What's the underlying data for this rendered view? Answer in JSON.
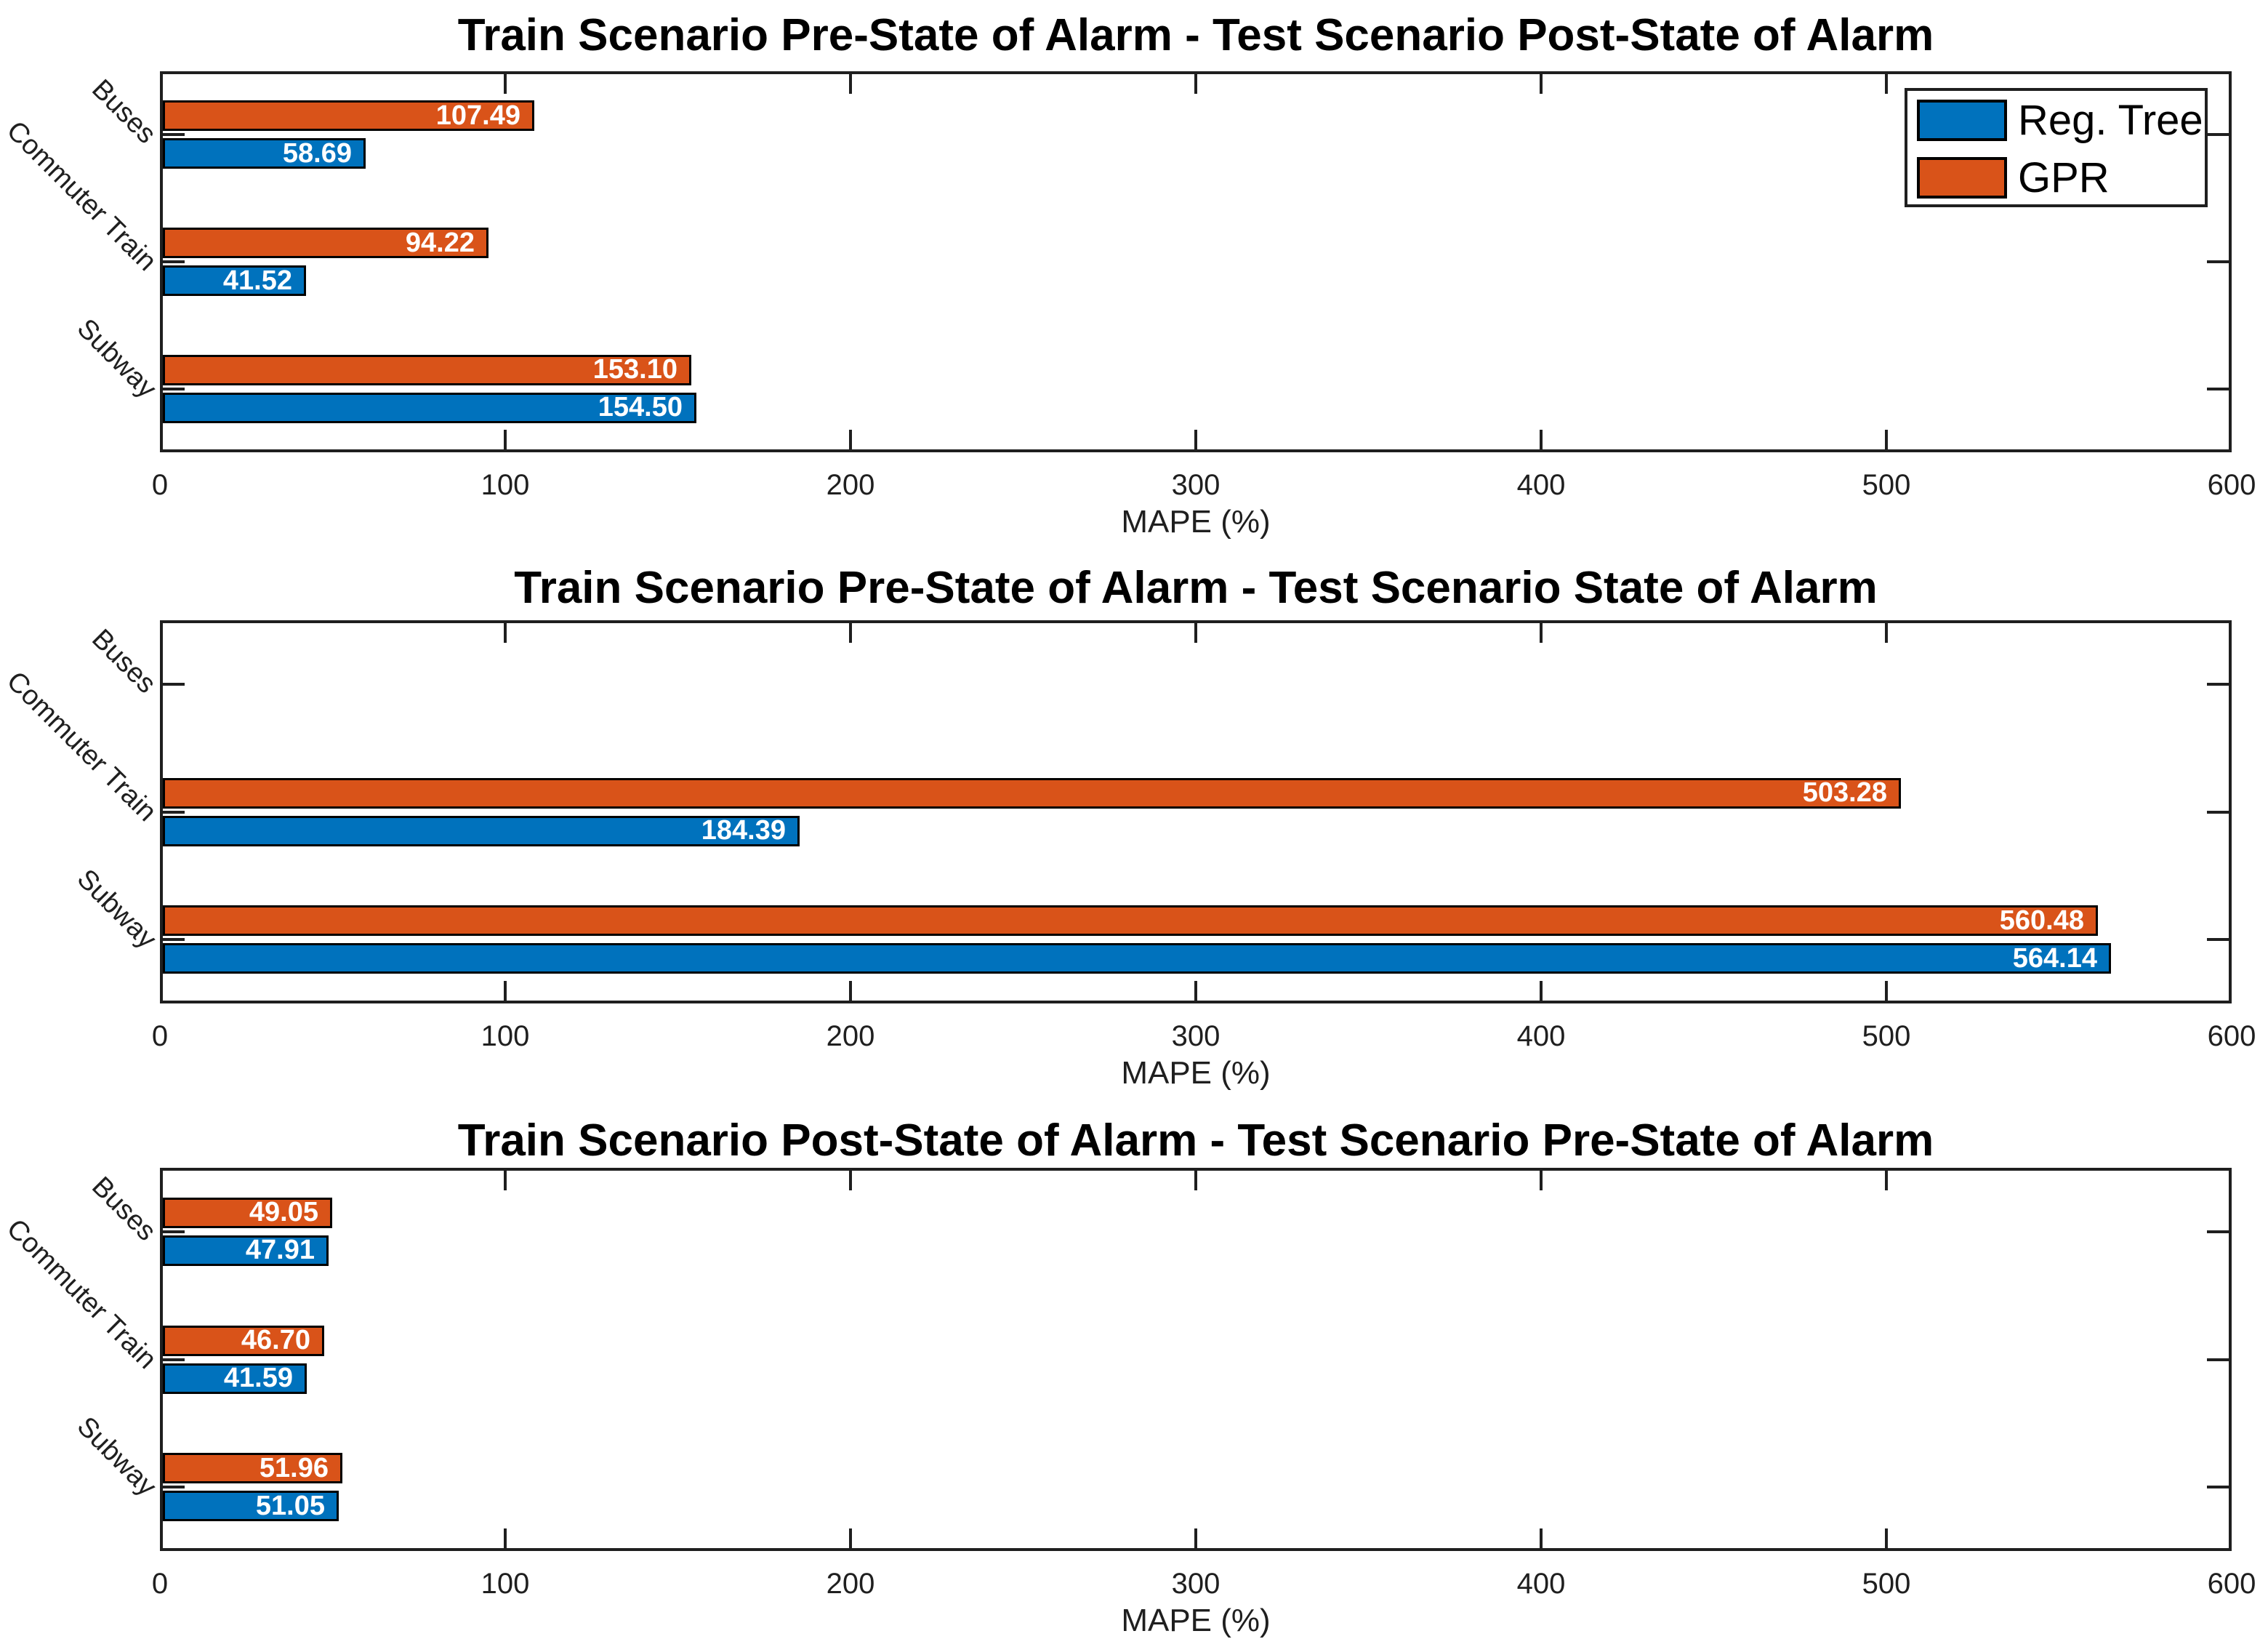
{
  "figure": {
    "background": "#ffffff",
    "axis_color": "#1f1f1f",
    "bar_label_color": "#ffffff",
    "series_colors": {
      "reg_tree": "#0072BD",
      "gpr": "#D95319"
    }
  },
  "legend": {
    "position": "top-right-of-first-chart",
    "items": [
      {
        "label": "Reg. Tree",
        "color": "#0072BD"
      },
      {
        "label": "GPR",
        "color": "#D95319"
      }
    ]
  },
  "chart_data": [
    {
      "type": "bar",
      "orientation": "horizontal",
      "title": "Train Scenario Pre-State of Alarm - Test Scenario Post-State of Alarm",
      "categories": [
        "Buses",
        "Commuter Train",
        "Subway"
      ],
      "series": [
        {
          "name": "Reg. Tree",
          "color": "#0072BD",
          "values": [
            58.69,
            41.52,
            154.5
          ]
        },
        {
          "name": "GPR",
          "color": "#D95319",
          "values": [
            107.49,
            94.22,
            153.1
          ]
        }
      ],
      "xlabel": "MAPE (%)",
      "xlim": [
        0,
        600
      ],
      "x_ticks": [
        0,
        100,
        200,
        300,
        400,
        500,
        600
      ],
      "grid": false,
      "legend_visible": true
    },
    {
      "type": "bar",
      "orientation": "horizontal",
      "title": "Train Scenario Pre-State of Alarm - Test Scenario State of Alarm",
      "categories": [
        "Buses",
        "Commuter Train",
        "Subway"
      ],
      "series": [
        {
          "name": "Reg. Tree",
          "color": "#0072BD",
          "values": [
            null,
            184.39,
            564.14
          ]
        },
        {
          "name": "GPR",
          "color": "#D95319",
          "values": [
            null,
            503.28,
            560.48
          ]
        }
      ],
      "xlabel": "MAPE (%)",
      "xlim": [
        0,
        600
      ],
      "x_ticks": [
        0,
        100,
        200,
        300,
        400,
        500,
        600
      ],
      "grid": false,
      "legend_visible": false
    },
    {
      "type": "bar",
      "orientation": "horizontal",
      "title": "Train Scenario Post-State of Alarm - Test Scenario Pre-State of Alarm",
      "categories": [
        "Buses",
        "Commuter Train",
        "Subway"
      ],
      "series": [
        {
          "name": "Reg. Tree",
          "color": "#0072BD",
          "values": [
            47.91,
            41.59,
            51.05
          ]
        },
        {
          "name": "GPR",
          "color": "#D95319",
          "values": [
            49.05,
            46.7,
            51.96
          ]
        }
      ],
      "xlabel": "MAPE (%)",
      "xlim": [
        0,
        600
      ],
      "x_ticks": [
        0,
        100,
        200,
        300,
        400,
        500,
        600
      ],
      "grid": false,
      "legend_visible": false
    }
  ]
}
